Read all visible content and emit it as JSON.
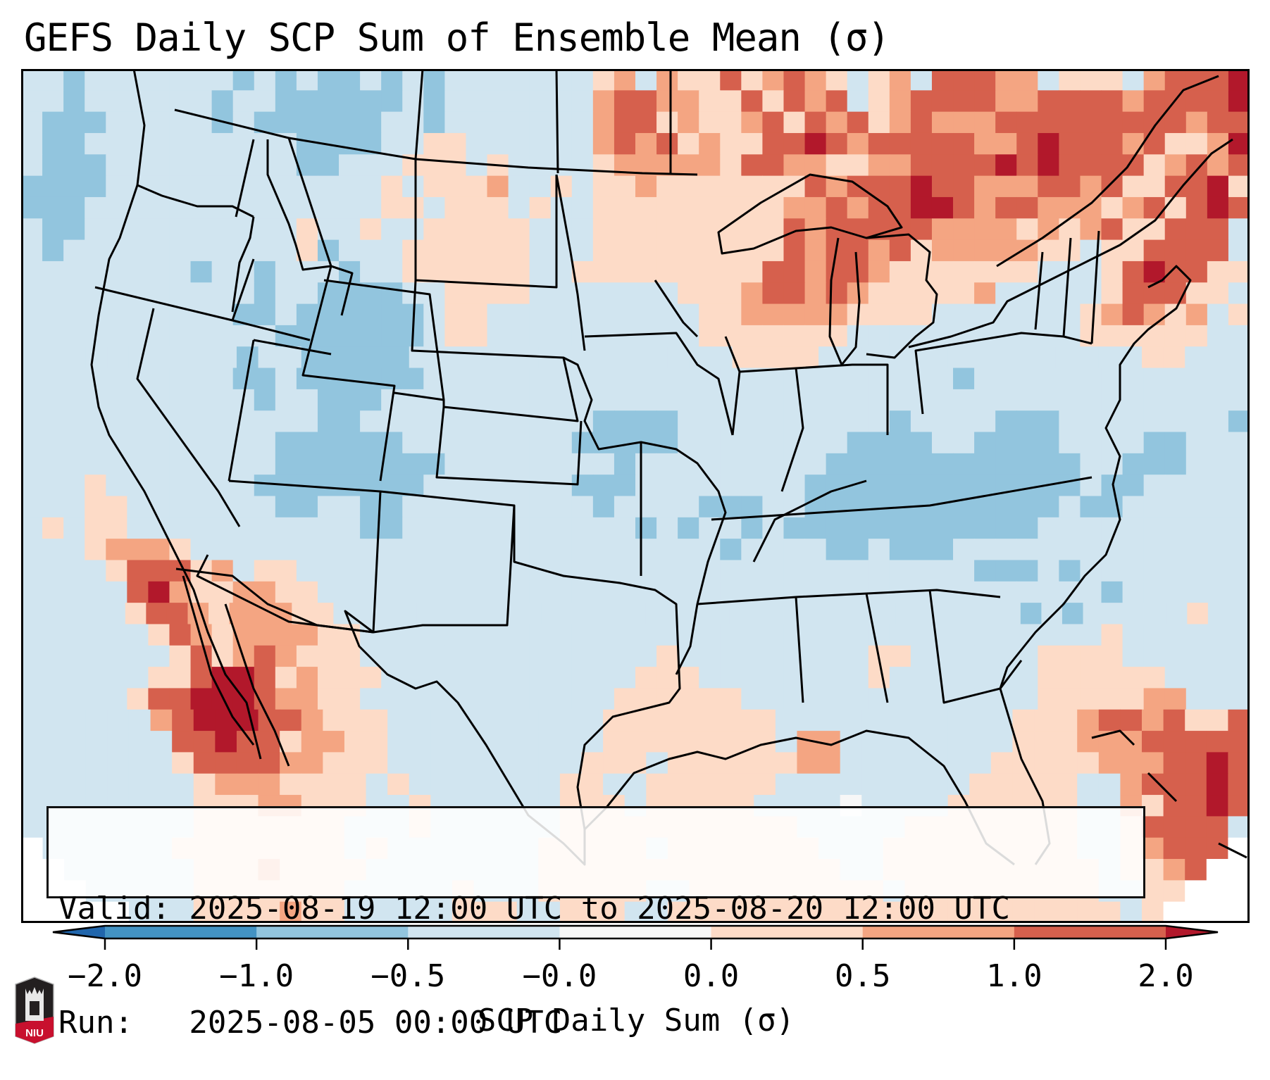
{
  "title": "GEFS Daily SCP Sum of Ensemble Mean (σ)",
  "info_box": {
    "valid_line": "Valid: 2025-08-19 12:00 UTC to 2025-08-20 12:00 UTC",
    "run_line": "Run:   2025-08-05 00:00 UTC"
  },
  "logo": {
    "text": "NIU",
    "name": "Northern Illinois University"
  },
  "chart_data": {
    "type": "heatmap",
    "title": "GEFS Daily SCP Sum of Ensemble Mean (σ)",
    "subtitle": "Valid: 2025-08-19 12:00 UTC to 2025-08-20 12:00 UTC; Run: 2025-08-05 00:00 UTC",
    "region": "Contiguous United States (Lambert conformal map with state borders and coastlines)",
    "xlabel": "",
    "ylabel": "",
    "colorbar": {
      "label": "SCP Daily Sum (σ)",
      "orientation": "horizontal",
      "placement": "bottom",
      "extend": "both",
      "boundaries": [
        -2.0,
        -1.0,
        -0.5,
        -0.0,
        0.0,
        0.5,
        1.0,
        2.0
      ],
      "tick_labels": [
        "−2.0",
        "−1.0",
        "−0.5",
        "−0.0",
        "0.0",
        "0.5",
        "1.0",
        "2.0"
      ],
      "colors": {
        "under": "#2166ac",
        "-2.0_to_-1.0": "#4393c3",
        "-1.0_to_-0.5": "#92c5de",
        "-0.5_to_-0.0": "#d1e5f0",
        "-0.0_to_0.0": "#f7f7f7",
        "0.0_to_0.5": "#fddbc7",
        "0.5_to_1.0": "#f4a582",
        "1.0_to_2.0": "#d6604d",
        "over": "#b2182b"
      }
    },
    "legend": {
      "B": [
        -2.0,
        -1.0
      ],
      "b": [
        -1.0,
        -0.5
      ],
      ".": [
        -0.5,
        0.0
      ],
      "w": [
        0.0,
        0.0
      ],
      "r": [
        0.0,
        0.5
      ],
      "o": [
        0.5,
        1.0
      ],
      "R": [
        1.0,
        2.0
      ],
      "X": [
        2.0,
        null
      ],
      "_": null
    },
    "grid_note": "approximate gridded anomaly category per cell, rows north to south, columns west to east",
    "grid": [
      "..b.......b.b.bb.b.b.......ro.orrRroRor.ro.RRRoo.rrr.oRRRX",
      "..b......b..bbbbbb.b.......oRRoorrRrRoR.roRRRRooRRRRoRRRRX",
      ".bbb.....b.bbbbbb..b.......oRRrorroRrRoRroRoooRRRRRRRRRoRR",
      ".bb..........bbbb..rr......oRoRrorrRRXRoRRRRRooRXRRRoRrroX",
      ".bbb.........bb...rrr.r....rooooorRRoorrooRRRRXRXRRRRroRoR",
      "bbbb.............r.rrro..r.rrorrrrrrrRoRRRXRRoooRRoRrrRRXr",
      "bbb..............rr.rrr.r..rrrrrrrrrooRoRRXXRoRRoooroRrRXR",
      ".bb..........r..r..rrrrr...rrrrrrrrrRoRRRRRoooororoRrrRRR.",
      ".b...........rb...rrrrrr...rrrrrrrrrRoRRoRrooooorr.rrRRRR.",
      "........b..b...b..rrrrrr..rrrrrrrrrRRoRRorrrrrrr...rRXRRrr",
      "...........b..bbbb..rrrr.......rrroRRoRorrrrro.....rRRRrr.",
      "..........bb.bbbbbb.rr..........rrooooorrrr.......roRoro.r",
      "............bbbbbbb.rr..........rrrrrrr...........rrrrrr..",
      "..........b..bbbbb...............rrrr...............rr...",
      "..........bb.bbbbbb.........................b.............",
      "...........b..bbb.........................................",
      "..............bb...........bbbb..........b....bbb........b",
      "............bbbbbb........bbbbb........bbbb..bbbb....bb...",
      "............bbbbbbbb........b.........bbbbbbbbbbbb..bbb...",
      "...r.......bbbbbbbb.......bbb........bbbbbbbbbbbbb.bb.....",
      "...rr.......bb..bb.........b....bbb..bbbbbbbbbbbb.bb......",
      ".r.rr...........bb...........b.b..b.bbbbbbbbbbbb..........",
      "...rooor.........................b....bb.bbb..............",
      "....rRRRro.rr................................bbb.b........",
      ".....RXorroorr.....................................b......",
      ".....rRRorooorr.................................b.b.....r..",
      "......rRoroooorr...................................r......",
      ".......rRroRorrr..............r.........rr......rrrr......",
      "......rrRXXRrorrr............rrr........r.......rrrrrr....",
      ".....rRRXXXRoorr............rrrrrr..............rrrrroo...",
      "......oRXXXRRorrr..........rrrrrrrr...........rrroRRoRrrR",
      ".......RRXRRroorr..........rrrrrrrr.oo........rrroooRRRRR",
      ".......rRRRRoorrr.........rrr.rrrrrroo.......rrrrroooRRXR",
      "........rooorrrr.r.......rr..rrrrrr.........rrrrr..oRRRXR",
      "........rrroorrr..r......rrr.rrrrr....w....rrrrrr..orRRXR",
      "........rrrrrrr...r......rrrrrrrrrrr.....rrrrrrrr..rRRRR.",
      "_......rrrrrrrr.r.......rrrrr.rrrrrrr...rrrrrrrrr..roRRR_",
      "__......rrrorrrr........rrrrrrrrrrrrrr..rrrrrrrrrr.rroR__",
      "___.....rrrrrrr.....r...rrrrr..rrrrrrrrr.rrrrrrrrr..rr___",
      "_____...rrrrorr.....rrr..rrr..rrrrrrrrrrrrrrrrrrrrr.r____"
    ]
  }
}
